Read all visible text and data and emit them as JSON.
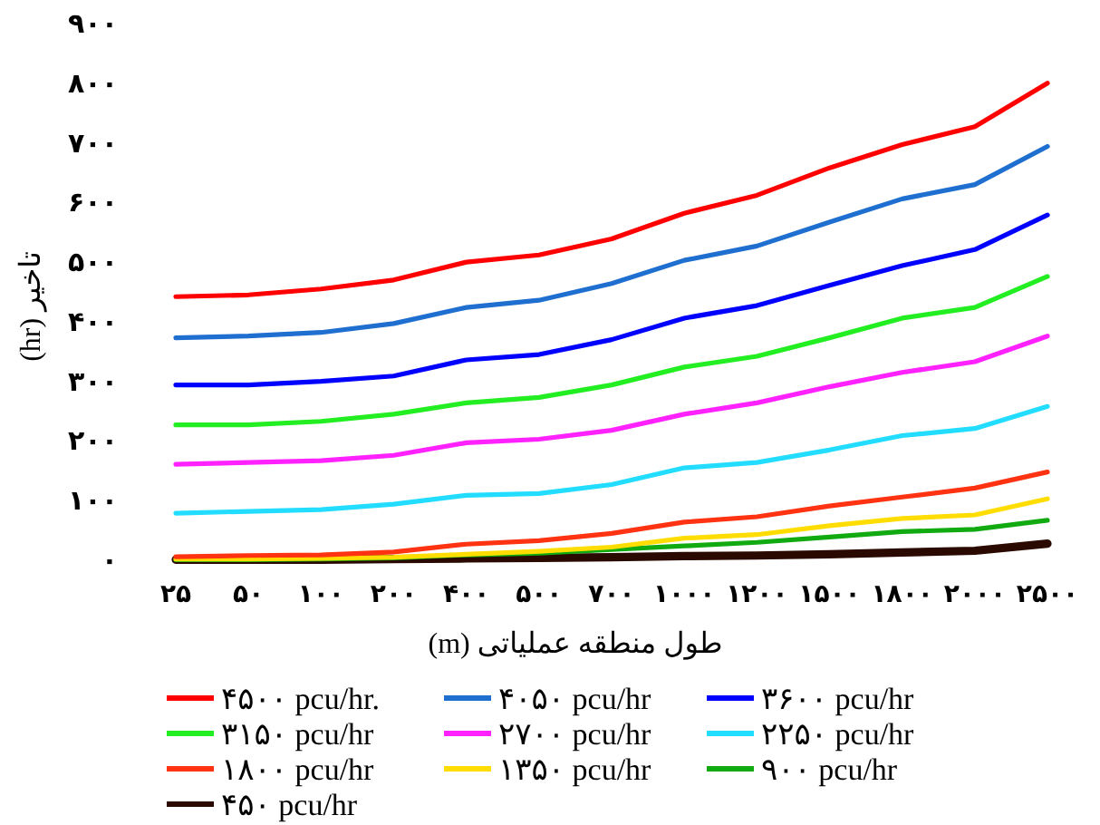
{
  "chart_data": {
    "type": "line",
    "xlabel": "طول منطقه عملیاتی (m)",
    "ylabel": "تاخیر (hr)",
    "categories": [
      "۲۵",
      "۵۰",
      "۱۰۰",
      "۲۰۰",
      "۴۰۰",
      "۵۰۰",
      "۷۰۰",
      "۱۰۰۰",
      "۱۲۰۰",
      "۱۵۰۰",
      "۱۸۰۰",
      "۲۰۰۰",
      "۲۵۰۰"
    ],
    "ylim": [
      0,
      900
    ],
    "yticks": [
      {
        "value": 0,
        "label": "۰"
      },
      {
        "value": 100,
        "label": "۱۰۰"
      },
      {
        "value": 200,
        "label": "۲۰۰"
      },
      {
        "value": 300,
        "label": "۳۰۰"
      },
      {
        "value": 400,
        "label": "۴۰۰"
      },
      {
        "value": 500,
        "label": "۵۰۰"
      },
      {
        "value": 600,
        "label": "۶۰۰"
      },
      {
        "value": 700,
        "label": "۷۰۰"
      },
      {
        "value": 800,
        "label": "۸۰۰"
      },
      {
        "value": 900,
        "label": "۹۰۰"
      }
    ],
    "grid": false,
    "legend": "bottom",
    "series": [
      {
        "name": "۴۵۰۰ pcu/hr.",
        "color": "#ff0000",
        "values": [
          442,
          445,
          455,
          470,
          500,
          512,
          539,
          582,
          612,
          658,
          697,
          727,
          800
        ]
      },
      {
        "name": "۴۰۵۰ pcu/hr",
        "color": "#1f6fd0",
        "values": [
          373,
          376,
          382,
          397,
          424,
          436,
          464,
          503,
          527,
          567,
          606,
          630,
          694
        ]
      },
      {
        "name": "۳۶۰۰ pcu/hr",
        "color": "#0000ff",
        "values": [
          294,
          294,
          300,
          309,
          336,
          345,
          370,
          406,
          427,
          461,
          494,
          521,
          579
        ]
      },
      {
        "name": "۳۱۵۰ pcu/hr",
        "color": "#22ee22",
        "values": [
          227,
          227,
          233,
          245,
          264,
          273,
          294,
          324,
          342,
          373,
          406,
          424,
          476
        ]
      },
      {
        "name": "۲۷۰۰ pcu/hr",
        "color": "#ff22ff",
        "values": [
          161,
          164,
          167,
          176,
          197,
          203,
          218,
          245,
          264,
          291,
          315,
          333,
          376
        ]
      },
      {
        "name": "۲۲۵۰ pcu/hr",
        "color": "#22ddff",
        "values": [
          79,
          82,
          85,
          94,
          109,
          112,
          127,
          155,
          164,
          185,
          209,
          221,
          258
        ]
      },
      {
        "name": "۱۸۰۰ pcu/hr",
        "color": "#ff3311",
        "values": [
          6,
          8,
          9,
          14,
          27,
          33,
          45,
          64,
          73,
          91,
          106,
          121,
          148
        ]
      },
      {
        "name": "۱۳۵۰ pcu/hr",
        "color": "#ffdd00",
        "values": [
          2,
          2,
          3,
          5,
          10,
          15,
          22,
          37,
          43,
          58,
          70,
          76,
          103
        ]
      },
      {
        "name": "۹۰۰ pcu/hr",
        "color": "#11aa11",
        "values": [
          1,
          1,
          2,
          4,
          9,
          12,
          18,
          24,
          30,
          39,
          48,
          52,
          67
        ]
      },
      {
        "name": "۴۵۰ pcu/hr",
        "color": "#2a0a00",
        "values": [
          1,
          1,
          1,
          2,
          3,
          4,
          5,
          7,
          8,
          10,
          13,
          16,
          28
        ]
      }
    ]
  }
}
